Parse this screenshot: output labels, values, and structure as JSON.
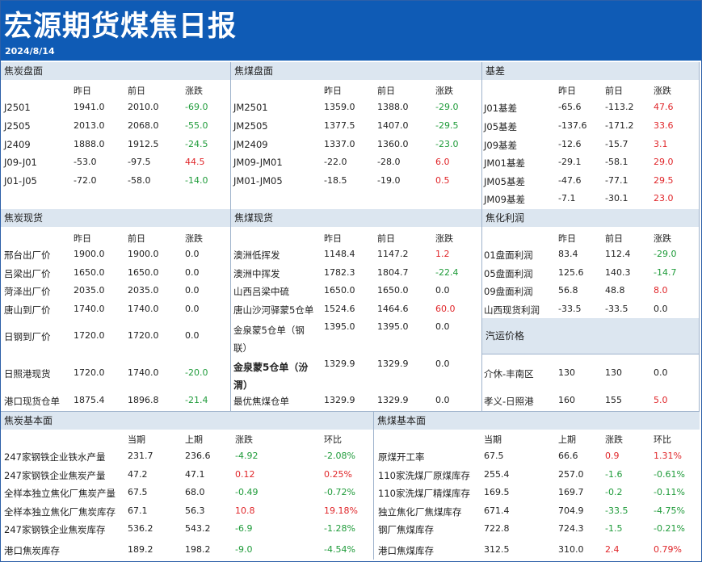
{
  "report": {
    "title": "宏源期货煤焦日报",
    "date": "2024/8/14"
  },
  "colors": {
    "header_bg": "#0f5bb5",
    "section_bg": "#dce6f0",
    "up": "#e0262a",
    "down": "#1f9b3a"
  },
  "coke_futures": {
    "title": "焦炭盘面",
    "headers": [
      "昨日",
      "前日",
      "涨跌"
    ],
    "rows": [
      [
        "J2501",
        "1941.0",
        "2010.0",
        "-69.0"
      ],
      [
        "J2505",
        "2013.0",
        "2068.0",
        "-55.0"
      ],
      [
        "J2409",
        "1888.0",
        "1912.5",
        "-24.5"
      ],
      [
        "J09-J01",
        "-53.0",
        "-97.5",
        "44.5"
      ],
      [
        "J01-J05",
        "-72.0",
        "-58.0",
        "-14.0"
      ]
    ]
  },
  "coal_futures": {
    "title": "焦煤盘面",
    "headers": [
      "昨日",
      "前日",
      "涨跌"
    ],
    "rows": [
      [
        "JM2501",
        "1359.0",
        "1388.0",
        "-29.0"
      ],
      [
        "JM2505",
        "1377.5",
        "1407.0",
        "-29.5"
      ],
      [
        "JM2409",
        "1337.0",
        "1360.0",
        "-23.0"
      ],
      [
        "JM09-JM01",
        "-22.0",
        "-28.0",
        "6.0"
      ],
      [
        "JM01-JM05",
        "-18.5",
        "-19.0",
        "0.5"
      ]
    ]
  },
  "basis": {
    "title": "基差",
    "headers": [
      "昨日",
      "前日",
      "涨跌"
    ],
    "rows": [
      [
        "J01基差",
        "-65.6",
        "-113.2",
        "47.6"
      ],
      [
        "J05基差",
        "-137.6",
        "-171.2",
        "33.6"
      ],
      [
        "J09基差",
        "-12.6",
        "-15.7",
        "3.1"
      ],
      [
        "JM01基差",
        "-29.1",
        "-58.1",
        "29.0"
      ],
      [
        "JM05基差",
        "-47.6",
        "-77.1",
        "29.5"
      ],
      [
        "JM09基差",
        "-7.1",
        "-30.1",
        "23.0"
      ]
    ]
  },
  "coke_spot": {
    "title": "焦炭现货",
    "headers": [
      "昨日",
      "前日",
      "涨跌"
    ],
    "rows": [
      [
        "邢台出厂价",
        "1900.0",
        "1900.0",
        "0.0"
      ],
      [
        "吕梁出厂价",
        "1650.0",
        "1650.0",
        "0.0"
      ],
      [
        "菏泽出厂价",
        "2035.0",
        "2035.0",
        "0.0"
      ],
      [
        "唐山到厂价",
        "1740.0",
        "1740.0",
        "0.0"
      ],
      [
        "日钢到厂价",
        "1720.0",
        "1720.0",
        "0.0"
      ],
      [
        "日照港现货",
        "1720.0",
        "1740.0",
        "-20.0"
      ],
      [
        "港口现货仓单",
        "1875.4",
        "1896.8",
        "-21.4"
      ]
    ]
  },
  "coal_spot": {
    "title": "焦煤现货",
    "headers": [
      "昨日",
      "前日",
      "涨跌"
    ],
    "rows": [
      [
        "澳洲低挥发",
        "1148.4",
        "1147.2",
        "1.2"
      ],
      [
        "澳洲中挥发",
        "1782.3",
        "1804.7",
        "-22.4"
      ],
      [
        "山西吕梁中硫",
        "1650.0",
        "1650.0",
        "0.0"
      ],
      [
        "唐山沙河驿蒙5仓单",
        "1524.6",
        "1464.6",
        "60.0"
      ],
      [
        "金泉蒙5仓单（钢联）",
        "1395.0",
        "1395.0",
        "0.0"
      ],
      [
        "金泉蒙5仓单（汾渭）",
        "1329.9",
        "1329.9",
        "0.0"
      ],
      [
        "最优焦煤仓单",
        "1329.9",
        "1329.9",
        "0.0"
      ]
    ]
  },
  "coking_profit": {
    "title": "焦化利润",
    "headers": [
      "昨日",
      "前日",
      "涨跌"
    ],
    "rows": [
      [
        "01盘面利润",
        "83.4",
        "112.4",
        "-29.0"
      ],
      [
        "05盘面利润",
        "125.6",
        "140.3",
        "-14.7"
      ],
      [
        "09盘面利润",
        "56.8",
        "48.8",
        "8.0"
      ],
      [
        "山西现货利润",
        "-33.5",
        "-33.5",
        "0.0"
      ]
    ]
  },
  "freight": {
    "title": "汽运价格",
    "rows": [
      [
        "介休-丰南区",
        "130",
        "130",
        "0.0"
      ],
      [
        "孝义-日照港",
        "160",
        "155",
        "5.0"
      ]
    ]
  },
  "coke_fundamentals": {
    "title": "焦炭基本面",
    "headers": [
      "当期",
      "上期",
      "涨跌",
      "环比"
    ],
    "rows": [
      [
        "247家钢铁企业铁水产量",
        "231.7",
        "236.6",
        "-4.92",
        "-2.08%"
      ],
      [
        "247家钢铁企业焦炭产量",
        "47.2",
        "47.1",
        "0.12",
        "0.25%"
      ],
      [
        "全样本独立焦化厂焦炭产量",
        "67.5",
        "68.0",
        "-0.49",
        "-0.72%"
      ],
      [
        "全样本独立焦化厂焦炭库存",
        "67.1",
        "56.3",
        "10.8",
        "19.18%"
      ],
      [
        "247家钢铁企业焦炭库存",
        "536.2",
        "543.2",
        "-6.9",
        "-1.28%"
      ],
      [
        "港口焦炭库存",
        "189.2",
        "198.2",
        "-9.0",
        "-4.54%"
      ]
    ]
  },
  "coal_fundamentals": {
    "title": "焦煤基本面",
    "headers": [
      "当期",
      "上期",
      "涨跌",
      "环比"
    ],
    "rows": [
      [
        "原煤开工率",
        "67.5",
        "66.6",
        "0.9",
        "1.31%"
      ],
      [
        "110家洗煤厂原煤库存",
        "255.4",
        "257.0",
        "-1.6",
        "-0.61%"
      ],
      [
        "110家洗煤厂精煤库存",
        "169.5",
        "169.7",
        "-0.2",
        "-0.11%"
      ],
      [
        "独立焦化厂焦煤库存",
        "671.4",
        "704.9",
        "-33.5",
        "-4.75%"
      ],
      [
        "钢厂焦煤库存",
        "722.8",
        "724.3",
        "-1.5",
        "-0.21%"
      ],
      [
        "港口焦煤库存",
        "312.5",
        "310.0",
        "2.4",
        "0.79%"
      ]
    ]
  }
}
